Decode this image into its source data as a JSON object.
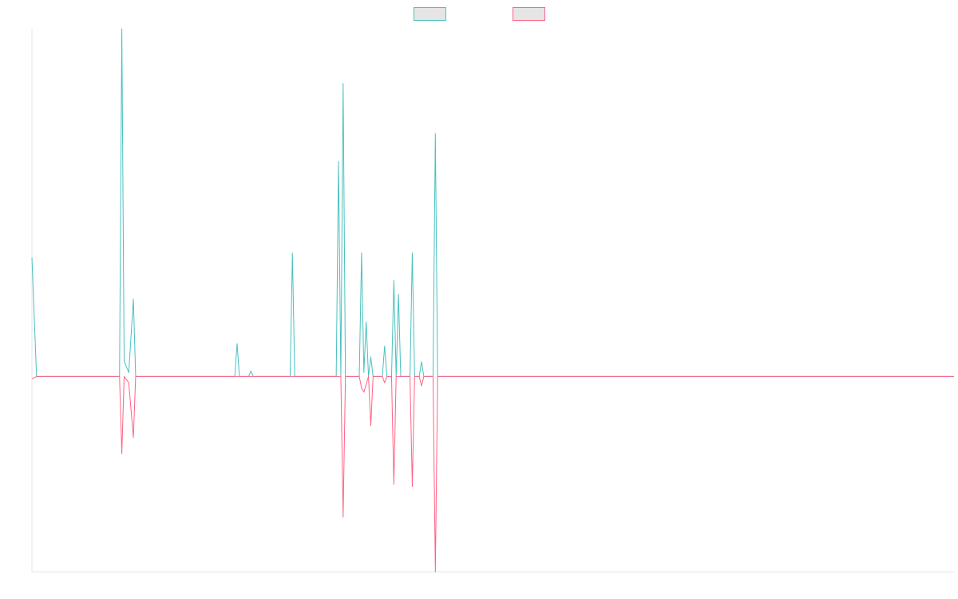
{
  "chart_data": {
    "type": "line",
    "title": "",
    "xlabel": "",
    "ylabel": "",
    "grid": false,
    "legend_position": "top-center",
    "ylim": [
      -250,
      445
    ],
    "x_count": 201,
    "series": [
      {
        "name": "",
        "color": "#4bc0c0",
        "fill": "#e5e5e5",
        "points": [
          [
            0,
            152
          ],
          [
            1,
            0
          ],
          [
            19,
            0
          ],
          [
            19.5,
            445
          ],
          [
            20,
            20
          ],
          [
            21,
            5
          ],
          [
            22,
            99
          ],
          [
            22.5,
            0
          ],
          [
            44,
            0
          ],
          [
            44.5,
            42
          ],
          [
            45,
            0
          ],
          [
            47,
            0
          ],
          [
            47.5,
            7
          ],
          [
            48,
            0
          ],
          [
            56,
            0
          ],
          [
            56.5,
            158
          ],
          [
            57,
            0
          ],
          [
            66,
            0
          ],
          [
            66.5,
            275
          ],
          [
            67,
            0
          ],
          [
            67.5,
            375
          ],
          [
            68,
            0
          ],
          [
            71,
            0
          ],
          [
            71.5,
            158
          ],
          [
            72,
            5
          ],
          [
            72.5,
            70
          ],
          [
            73,
            0
          ],
          [
            73.5,
            25
          ],
          [
            74,
            0
          ],
          [
            76,
            0
          ],
          [
            76.5,
            39
          ],
          [
            77,
            0
          ],
          [
            78,
            0
          ],
          [
            78.5,
            123
          ],
          [
            79,
            0
          ],
          [
            79.5,
            105
          ],
          [
            80,
            0
          ],
          [
            82,
            0
          ],
          [
            82.5,
            158
          ],
          [
            83,
            0
          ],
          [
            84,
            0
          ],
          [
            84.5,
            19
          ],
          [
            85,
            0
          ],
          [
            87,
            0
          ],
          [
            87.5,
            311
          ],
          [
            88,
            0
          ],
          [
            200,
            0
          ]
        ]
      },
      {
        "name": "",
        "color": "#ff6384",
        "fill": "#e5e5e5",
        "points": [
          [
            0,
            -3
          ],
          [
            1,
            0
          ],
          [
            19,
            0
          ],
          [
            19.5,
            -99
          ],
          [
            20,
            0
          ],
          [
            21,
            -8
          ],
          [
            22,
            -78
          ],
          [
            22.5,
            0
          ],
          [
            67,
            0
          ],
          [
            67.5,
            -180
          ],
          [
            68,
            0
          ],
          [
            71,
            0
          ],
          [
            71.5,
            -15
          ],
          [
            72,
            -20
          ],
          [
            72.5,
            -10
          ],
          [
            73,
            0
          ],
          [
            73.5,
            -63
          ],
          [
            74,
            0
          ],
          [
            76,
            0
          ],
          [
            76.5,
            -8
          ],
          [
            77,
            0
          ],
          [
            78,
            0
          ],
          [
            78.5,
            -138
          ],
          [
            79,
            0
          ],
          [
            82,
            0
          ],
          [
            82.5,
            -141
          ],
          [
            83,
            0
          ],
          [
            84,
            0
          ],
          [
            84.5,
            -12
          ],
          [
            85,
            0
          ],
          [
            87,
            0
          ],
          [
            87.5,
            -250
          ],
          [
            88,
            0
          ],
          [
            200,
            0
          ]
        ]
      }
    ]
  }
}
